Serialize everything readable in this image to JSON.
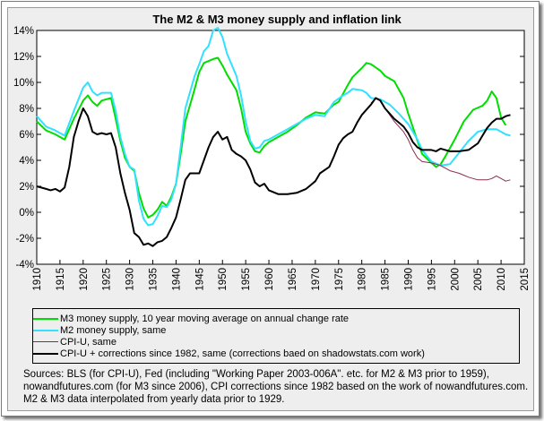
{
  "chart_data": {
    "type": "line",
    "title": "The M2 & M3 money supply and inflation link",
    "xlim": [
      1910,
      2015
    ],
    "ylim": [
      -4,
      14
    ],
    "x_ticks": [
      "1910",
      "1915",
      "1920",
      "1925",
      "1930",
      "1935",
      "1940",
      "1945",
      "1950",
      "1955",
      "1960",
      "1965",
      "1970",
      "1975",
      "1980",
      "1985",
      "1990",
      "1995",
      "2000",
      "2005",
      "2010",
      "2015"
    ],
    "y_ticks": [
      "14%",
      "12%",
      "10%",
      "8%",
      "6%",
      "4%",
      "2%",
      "0%",
      "-2%",
      "-4%"
    ],
    "grid": false,
    "legend_position": "bottom",
    "series": [
      {
        "name": "M3 money supply, 10 year moving average on annual change rate",
        "color": "#00dd00",
        "points": [
          [
            1910,
            7.0
          ],
          [
            1912,
            6.3
          ],
          [
            1914,
            6.0
          ],
          [
            1916,
            5.6
          ],
          [
            1918,
            7.2
          ],
          [
            1920,
            8.6
          ],
          [
            1921,
            9.0
          ],
          [
            1922,
            8.5
          ],
          [
            1923,
            8.2
          ],
          [
            1924,
            8.6
          ],
          [
            1926,
            8.8
          ],
          [
            1927,
            7.2
          ],
          [
            1928,
            5.5
          ],
          [
            1929,
            4.2
          ],
          [
            1930,
            3.5
          ],
          [
            1931,
            3.2
          ],
          [
            1932,
            1.5
          ],
          [
            1933,
            0.3
          ],
          [
            1934,
            -0.4
          ],
          [
            1935,
            -0.2
          ],
          [
            1936,
            0.2
          ],
          [
            1937,
            0.8
          ],
          [
            1938,
            0.5
          ],
          [
            1939,
            1.2
          ],
          [
            1940,
            2.2
          ],
          [
            1941,
            4.5
          ],
          [
            1942,
            7.0
          ],
          [
            1944,
            9.5
          ],
          [
            1945,
            10.8
          ],
          [
            1946,
            11.5
          ],
          [
            1948,
            11.8
          ],
          [
            1949,
            11.9
          ],
          [
            1950,
            11.3
          ],
          [
            1951,
            10.6
          ],
          [
            1953,
            9.4
          ],
          [
            1954,
            8.0
          ],
          [
            1955,
            6.2
          ],
          [
            1956,
            5.3
          ],
          [
            1957,
            4.7
          ],
          [
            1958,
            4.6
          ],
          [
            1959,
            5.1
          ],
          [
            1960,
            5.4
          ],
          [
            1962,
            5.8
          ],
          [
            1964,
            6.2
          ],
          [
            1966,
            6.7
          ],
          [
            1968,
            7.3
          ],
          [
            1970,
            7.7
          ],
          [
            1972,
            7.6
          ],
          [
            1974,
            8.3
          ],
          [
            1975,
            8.5
          ],
          [
            1977,
            9.8
          ],
          [
            1978,
            10.4
          ],
          [
            1980,
            11.1
          ],
          [
            1981,
            11.5
          ],
          [
            1982,
            11.4
          ],
          [
            1984,
            10.9
          ],
          [
            1985,
            10.5
          ],
          [
            1987,
            10.1
          ],
          [
            1989,
            8.8
          ],
          [
            1990,
            7.6
          ],
          [
            1992,
            5.5
          ],
          [
            1993,
            4.5
          ],
          [
            1995,
            3.8
          ],
          [
            1996,
            3.5
          ],
          [
            1997,
            3.7
          ],
          [
            1998,
            4.3
          ],
          [
            2000,
            5.6
          ],
          [
            2002,
            7.0
          ],
          [
            2004,
            7.9
          ],
          [
            2006,
            8.2
          ],
          [
            2007,
            8.6
          ],
          [
            2008,
            9.3
          ],
          [
            2009,
            8.8
          ],
          [
            2010,
            7.3
          ],
          [
            2011,
            6.7
          ]
        ]
      },
      {
        "name": "M2 money supply, same",
        "color": "#33e0ff",
        "points": [
          [
            1910,
            7.4
          ],
          [
            1912,
            6.6
          ],
          [
            1914,
            6.3
          ],
          [
            1916,
            5.9
          ],
          [
            1918,
            7.8
          ],
          [
            1920,
            9.6
          ],
          [
            1921,
            10.0
          ],
          [
            1922,
            9.3
          ],
          [
            1923,
            9.0
          ],
          [
            1924,
            9.2
          ],
          [
            1926,
            9.2
          ],
          [
            1927,
            7.8
          ],
          [
            1928,
            5.8
          ],
          [
            1929,
            4.5
          ],
          [
            1930,
            3.5
          ],
          [
            1931,
            3.3
          ],
          [
            1932,
            0.9
          ],
          [
            1933,
            -0.5
          ],
          [
            1934,
            -1.0
          ],
          [
            1935,
            -0.9
          ],
          [
            1936,
            -0.3
          ],
          [
            1937,
            0.5
          ],
          [
            1938,
            0.4
          ],
          [
            1939,
            1.0
          ],
          [
            1940,
            2.2
          ],
          [
            1941,
            5.0
          ],
          [
            1942,
            8.0
          ],
          [
            1944,
            10.5
          ],
          [
            1945,
            11.4
          ],
          [
            1946,
            12.4
          ],
          [
            1947,
            12.8
          ],
          [
            1948,
            14.0
          ],
          [
            1949,
            14.2
          ],
          [
            1950,
            13.5
          ],
          [
            1951,
            12.2
          ],
          [
            1953,
            10.5
          ],
          [
            1954,
            9.0
          ],
          [
            1955,
            7.0
          ],
          [
            1956,
            5.5
          ],
          [
            1957,
            4.9
          ],
          [
            1958,
            5.0
          ],
          [
            1959,
            5.5
          ],
          [
            1960,
            5.6
          ],
          [
            1962,
            6.0
          ],
          [
            1964,
            6.4
          ],
          [
            1966,
            6.8
          ],
          [
            1968,
            7.2
          ],
          [
            1970,
            7.5
          ],
          [
            1972,
            7.4
          ],
          [
            1974,
            8.5
          ],
          [
            1976,
            9.0
          ],
          [
            1977,
            9.2
          ],
          [
            1978,
            9.5
          ],
          [
            1980,
            9.4
          ],
          [
            1981,
            9.2
          ],
          [
            1982,
            8.8
          ],
          [
            1984,
            8.7
          ],
          [
            1986,
            8.3
          ],
          [
            1988,
            7.6
          ],
          [
            1990,
            6.8
          ],
          [
            1992,
            5.6
          ],
          [
            1993,
            4.8
          ],
          [
            1995,
            3.9
          ],
          [
            1997,
            3.6
          ],
          [
            1999,
            3.7
          ],
          [
            2001,
            4.6
          ],
          [
            2003,
            5.5
          ],
          [
            2005,
            6.2
          ],
          [
            2007,
            6.4
          ],
          [
            2009,
            6.4
          ],
          [
            2010,
            6.2
          ],
          [
            2011,
            6.0
          ],
          [
            2012,
            5.9
          ]
        ]
      },
      {
        "name": "CPI-U, same",
        "color": "#8b2a50",
        "points": [
          [
            1982,
            8.4
          ],
          [
            1983,
            8.8
          ],
          [
            1984,
            8.6
          ],
          [
            1985,
            8.0
          ],
          [
            1986,
            7.5
          ],
          [
            1987,
            7.0
          ],
          [
            1988,
            6.6
          ],
          [
            1989,
            6.2
          ],
          [
            1990,
            5.6
          ],
          [
            1991,
            4.8
          ],
          [
            1992,
            4.2
          ],
          [
            1993,
            3.9
          ],
          [
            1995,
            3.8
          ],
          [
            1997,
            3.6
          ],
          [
            1999,
            3.2
          ],
          [
            2001,
            3.0
          ],
          [
            2003,
            2.7
          ],
          [
            2005,
            2.5
          ],
          [
            2007,
            2.5
          ],
          [
            2008,
            2.6
          ],
          [
            2009,
            2.8
          ],
          [
            2010,
            2.6
          ],
          [
            2011,
            2.4
          ],
          [
            2012,
            2.5
          ]
        ]
      },
      {
        "name": "CPI-U + corrections since 1982, same (corrections baed on shadowstats.com work)",
        "color": "#000000",
        "points": [
          [
            1910,
            2.0
          ],
          [
            1912,
            1.8
          ],
          [
            1913,
            1.7
          ],
          [
            1914,
            1.8
          ],
          [
            1915,
            1.6
          ],
          [
            1916,
            1.9
          ],
          [
            1917,
            3.5
          ],
          [
            1918,
            5.8
          ],
          [
            1919,
            7.0
          ],
          [
            1920,
            8.0
          ],
          [
            1921,
            7.4
          ],
          [
            1922,
            6.2
          ],
          [
            1923,
            6.0
          ],
          [
            1924,
            6.1
          ],
          [
            1925,
            6.0
          ],
          [
            1926,
            6.1
          ],
          [
            1927,
            5.0
          ],
          [
            1928,
            3.0
          ],
          [
            1929,
            1.5
          ],
          [
            1930,
            0.2
          ],
          [
            1931,
            -1.6
          ],
          [
            1932,
            -1.9
          ],
          [
            1933,
            -2.5
          ],
          [
            1934,
            -2.4
          ],
          [
            1935,
            -2.6
          ],
          [
            1936,
            -2.3
          ],
          [
            1937,
            -2.2
          ],
          [
            1938,
            -1.9
          ],
          [
            1939,
            -1.2
          ],
          [
            1940,
            -0.4
          ],
          [
            1941,
            1.0
          ],
          [
            1942,
            2.5
          ],
          [
            1943,
            3.0
          ],
          [
            1944,
            3.0
          ],
          [
            1945,
            3.0
          ],
          [
            1946,
            4.0
          ],
          [
            1947,
            5.0
          ],
          [
            1948,
            5.8
          ],
          [
            1949,
            6.2
          ],
          [
            1950,
            5.6
          ],
          [
            1951,
            5.8
          ],
          [
            1952,
            4.8
          ],
          [
            1953,
            4.5
          ],
          [
            1954,
            4.3
          ],
          [
            1955,
            4.0
          ],
          [
            1956,
            3.3
          ],
          [
            1957,
            2.3
          ],
          [
            1958,
            2.0
          ],
          [
            1959,
            2.2
          ],
          [
            1960,
            1.7
          ],
          [
            1962,
            1.4
          ],
          [
            1964,
            1.4
          ],
          [
            1966,
            1.5
          ],
          [
            1968,
            1.8
          ],
          [
            1969,
            2.1
          ],
          [
            1970,
            2.4
          ],
          [
            1971,
            3.0
          ],
          [
            1973,
            3.5
          ],
          [
            1974,
            4.3
          ],
          [
            1975,
            5.2
          ],
          [
            1976,
            5.7
          ],
          [
            1977,
            6.0
          ],
          [
            1978,
            6.2
          ],
          [
            1979,
            6.9
          ],
          [
            1980,
            7.5
          ],
          [
            1982,
            8.3
          ],
          [
            1983,
            8.8
          ],
          [
            1984,
            8.6
          ],
          [
            1985,
            8.0
          ],
          [
            1986,
            7.6
          ],
          [
            1987,
            7.2
          ],
          [
            1988,
            6.9
          ],
          [
            1989,
            6.6
          ],
          [
            1990,
            6.1
          ],
          [
            1991,
            5.4
          ],
          [
            1992,
            5.0
          ],
          [
            1993,
            4.8
          ],
          [
            1995,
            4.8
          ],
          [
            1996,
            4.7
          ],
          [
            1997,
            4.9
          ],
          [
            1999,
            4.7
          ],
          [
            2001,
            4.7
          ],
          [
            2003,
            4.8
          ],
          [
            2005,
            5.3
          ],
          [
            2006,
            5.9
          ],
          [
            2007,
            6.5
          ],
          [
            2008,
            6.9
          ],
          [
            2009,
            7.2
          ],
          [
            2010,
            7.2
          ],
          [
            2011,
            7.4
          ],
          [
            2012,
            7.5
          ]
        ]
      }
    ]
  },
  "sources_text": "Sources: BLS (for CPI-U), Fed (including \"Working Paper 2003-006A\". etc. for M2 & M3 prior to 1959), nowandfutures.com (for M3 since 2006), CPI corrections since 1982 based on the work of nowandfutures.com. M2 & M3 data interpolated from yearly data prior to 1929."
}
